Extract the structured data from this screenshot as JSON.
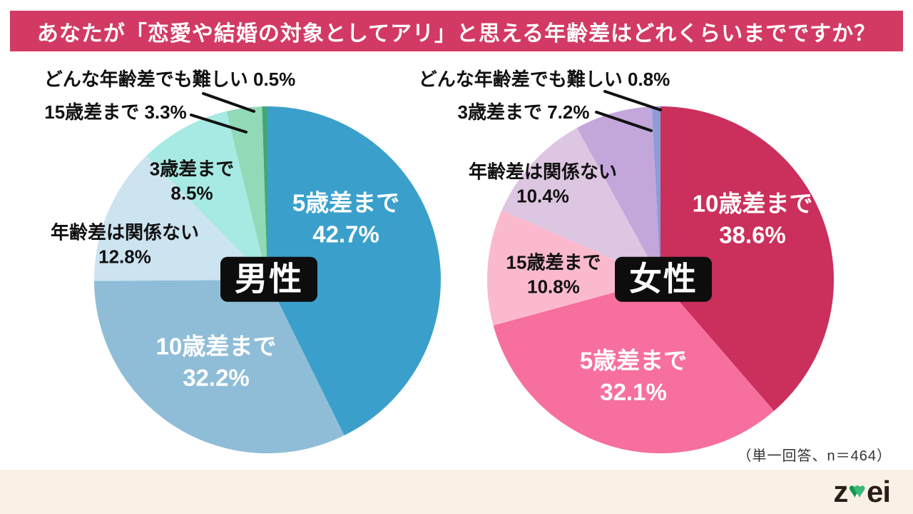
{
  "title": "あなたが「恋愛や結婚の対象としてアリ」と思える年齢差はどれくらいまでですか？",
  "footnote": "（単一回答、n＝464）",
  "footer": {
    "logo": {
      "name": "zwei",
      "z": "z",
      "ei": "ei",
      "heart_icon": "♥"
    }
  },
  "colors": {
    "banner_bg": "#D23A63",
    "footer_bg": "#FAF0E5",
    "group_box_bg": "#0d0d0d",
    "leader_line": "#111111"
  },
  "chart_data": [
    {
      "type": "pie",
      "group_label": "男性",
      "start_angle_deg": 0,
      "direction": "clockwise",
      "slices": [
        {
          "label": "5歳差まで",
          "value": 42.7,
          "pct": "42.7%",
          "color": "#3AA0CB",
          "label_position": "inside"
        },
        {
          "label": "10歳差まで",
          "value": 32.2,
          "pct": "32.2%",
          "color": "#8FBDD8",
          "label_position": "inside"
        },
        {
          "label": "年齢差は関係ない",
          "value": 12.8,
          "pct": "12.8%",
          "color": "#CCE3F0",
          "label_position": "outside"
        },
        {
          "label": "3歳差まで",
          "value": 8.5,
          "pct": "8.5%",
          "color": "#A7E9E3",
          "label_position": "outside"
        },
        {
          "label": "15歳差まで",
          "value": 3.3,
          "pct": "3.3%",
          "color": "#92D9B8",
          "label_position": "outside"
        },
        {
          "label": "どんな年齢差でも難しい",
          "value": 0.5,
          "pct": "0.5%",
          "color": "#43A679",
          "label_position": "outside"
        }
      ]
    },
    {
      "type": "pie",
      "group_label": "女性",
      "start_angle_deg": 0,
      "direction": "clockwise",
      "slices": [
        {
          "label": "10歳差まで",
          "value": 38.6,
          "pct": "38.6%",
          "color": "#CB2F5B",
          "label_position": "inside"
        },
        {
          "label": "5歳差まで",
          "value": 32.1,
          "pct": "32.1%",
          "color": "#F76F9E",
          "label_position": "inside"
        },
        {
          "label": "15歳差まで",
          "value": 10.8,
          "pct": "10.8%",
          "color": "#FBB9CD",
          "label_position": "outside"
        },
        {
          "label": "年齢差は関係ない",
          "value": 10.4,
          "pct": "10.4%",
          "color": "#DDC6E1",
          "label_position": "outside"
        },
        {
          "label": "3歳差まで",
          "value": 7.2,
          "pct": "7.2%",
          "color": "#C3A7DB",
          "label_position": "outside"
        },
        {
          "label": "どんな年齢差でも難しい",
          "value": 0.8,
          "pct": "0.8%",
          "color": "#8D9BD8",
          "label_position": "outside"
        }
      ]
    }
  ]
}
